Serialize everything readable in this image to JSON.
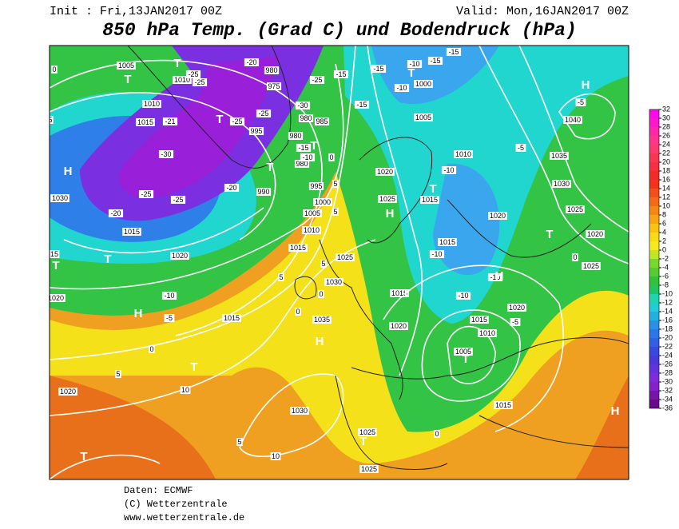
{
  "header": {
    "init": "Init : Fri,13JAN2017 00Z",
    "valid": "Valid: Mon,16JAN2017 00Z",
    "title": "850 hPa Temp. (Grad C) und Bodendruck (hPa)"
  },
  "colorbar": {
    "ticks": [
      32,
      30,
      28,
      26,
      24,
      22,
      20,
      18,
      16,
      14,
      12,
      10,
      8,
      6,
      4,
      2,
      0,
      -2,
      -4,
      -6,
      -8,
      -10,
      -12,
      -14,
      -16,
      -18,
      -20,
      -22,
      -24,
      -26,
      -28,
      -30,
      -32,
      -34,
      -36
    ]
  },
  "map_labels": [
    "1005",
    "1010",
    "1010",
    "1015",
    "1030",
    "1015",
    "1020",
    "1020",
    "1020",
    "1015",
    "1030",
    "1025",
    "1025",
    "1035",
    "1030",
    "1025",
    "1015",
    "1010",
    "1005",
    "1000",
    "995",
    "990",
    "995",
    "980",
    "980",
    "985",
    "980",
    "975",
    "980",
    "1000",
    "1005",
    "1010",
    "1020",
    "1025",
    "1015",
    "1020",
    "1015",
    "1015",
    "1020",
    "1015",
    "1010",
    "1005",
    "1015",
    "1020",
    "1025",
    "1020",
    "1025",
    "1030",
    "1035",
    "1040",
    "-25",
    "-25",
    "-21",
    "-30",
    "-25",
    "-25",
    "-20",
    "-25",
    "-25",
    "-20",
    "-10",
    "-5",
    "-20",
    "-25",
    "-15",
    "-30",
    "-15",
    "-10",
    "-15",
    "-15",
    "-10",
    "-10",
    "-15",
    "-15",
    "-10",
    "-10",
    "-10",
    "-10",
    "-5",
    "-5",
    "-5",
    "0",
    "5",
    "0",
    "5",
    "5",
    "5",
    "0",
    "5",
    "0",
    "0",
    "5",
    "10",
    "5",
    "10",
    "0",
    "0",
    "15",
    "T",
    "T",
    "H",
    "T",
    "T",
    "H",
    "T",
    "T",
    "H",
    "T",
    "T",
    "T",
    "T",
    "T",
    "H",
    "T",
    "T",
    "T",
    "H",
    "T",
    "H",
    "H"
  ],
  "footer": {
    "source": "Daten: ECMWF",
    "copyright": "(C) Wetterzentrale",
    "url": "www.wetterzentrale.de"
  }
}
